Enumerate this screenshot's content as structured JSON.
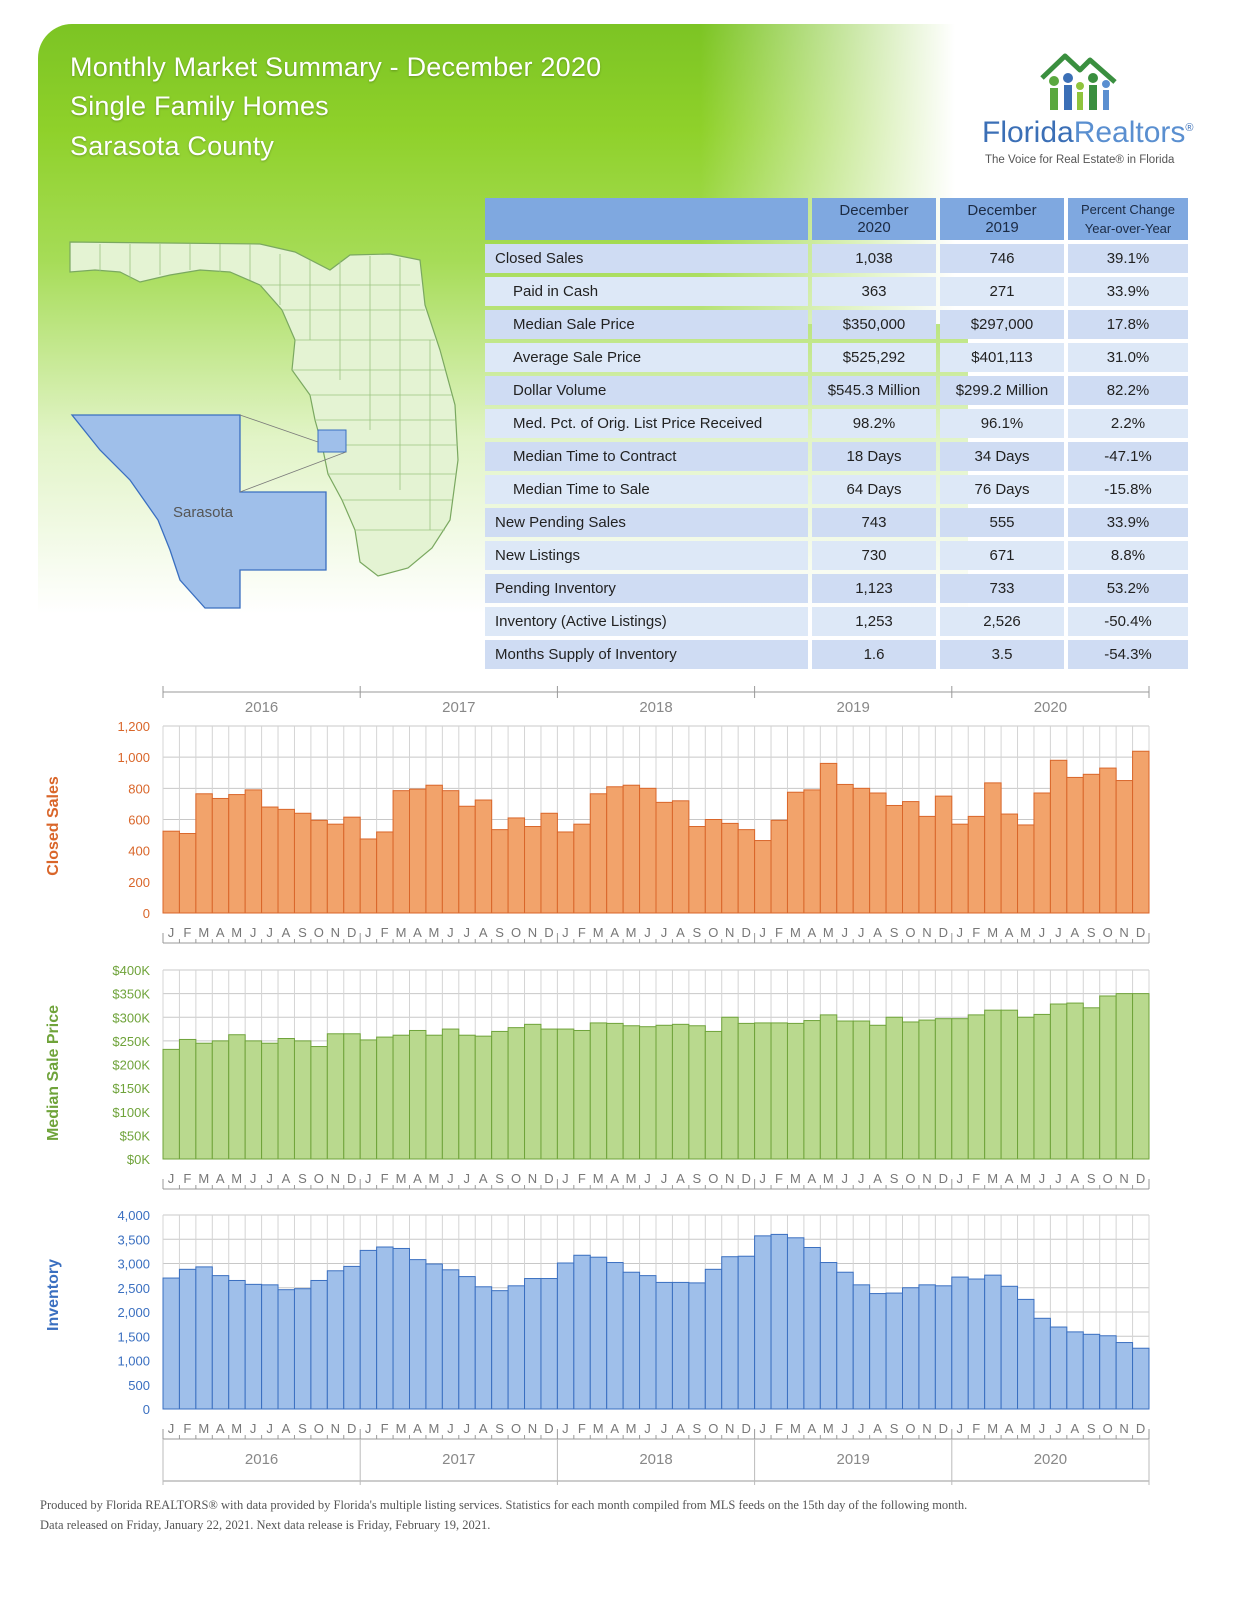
{
  "header": {
    "line1": "Monthly Market Summary - December 2020",
    "line2": "Single Family Homes",
    "line3": "Sarasota County"
  },
  "logo": {
    "word_part1": "Florida",
    "word_part2": "Realtors",
    "reg_mark": "®",
    "tagline": "The Voice for Real Estate® in Florida"
  },
  "map": {
    "county_label": "Sarasota"
  },
  "summary_table": {
    "columns": [
      "December 2020",
      "December 2019",
      "Percent Change Year-over-Year"
    ],
    "rows": [
      {
        "label": "Closed Sales",
        "dec2020": "1,038",
        "dec2019": "746",
        "pct": "39.1%",
        "indent": false
      },
      {
        "label": "Paid in Cash",
        "dec2020": "363",
        "dec2019": "271",
        "pct": "33.9%",
        "indent": true
      },
      {
        "label": "Median Sale Price",
        "dec2020": "$350,000",
        "dec2019": "$297,000",
        "pct": "17.8%",
        "indent": true
      },
      {
        "label": "Average Sale Price",
        "dec2020": "$525,292",
        "dec2019": "$401,113",
        "pct": "31.0%",
        "indent": true
      },
      {
        "label": "Dollar Volume",
        "dec2020": "$545.3 Million",
        "dec2019": "$299.2 Million",
        "pct": "82.2%",
        "indent": true
      },
      {
        "label": "Med. Pct. of Orig. List Price Received",
        "dec2020": "98.2%",
        "dec2019": "96.1%",
        "pct": "2.2%",
        "indent": true
      },
      {
        "label": "Median Time to Contract",
        "dec2020": "18 Days",
        "dec2019": "34 Days",
        "pct": "-47.1%",
        "indent": true
      },
      {
        "label": "Median Time to Sale",
        "dec2020": "64 Days",
        "dec2019": "76 Days",
        "pct": "-15.8%",
        "indent": true
      },
      {
        "label": "New Pending Sales",
        "dec2020": "743",
        "dec2019": "555",
        "pct": "33.9%",
        "indent": false
      },
      {
        "label": "New Listings",
        "dec2020": "730",
        "dec2019": "671",
        "pct": "8.8%",
        "indent": false
      },
      {
        "label": "Pending Inventory",
        "dec2020": "1,123",
        "dec2019": "733",
        "pct": "53.2%",
        "indent": false
      },
      {
        "label": "Inventory (Active Listings)",
        "dec2020": "1,253",
        "dec2019": "2,526",
        "pct": "-50.4%",
        "indent": false
      },
      {
        "label": "Months Supply of Inventory",
        "dec2020": "1.6",
        "dec2019": "3.5",
        "pct": "-54.3%",
        "indent": false
      }
    ]
  },
  "chart_data": [
    {
      "type": "bar",
      "ylabel": "Closed Sales",
      "years": [
        "2016",
        "2017",
        "2018",
        "2019",
        "2020"
      ],
      "month_labels": [
        "J",
        "F",
        "M",
        "A",
        "M",
        "J",
        "J",
        "A",
        "S",
        "O",
        "N",
        "D"
      ],
      "ylim": [
        0,
        1200
      ],
      "yticks": [
        "0",
        "200",
        "400",
        "600",
        "800",
        "1,000",
        "1,200"
      ],
      "color": "#f2a36b",
      "edge": "#d9662a",
      "values": [
        525,
        510,
        765,
        735,
        760,
        790,
        680,
        665,
        640,
        595,
        570,
        615,
        475,
        520,
        785,
        795,
        820,
        785,
        685,
        725,
        535,
        610,
        555,
        640,
        520,
        570,
        765,
        810,
        820,
        800,
        710,
        720,
        555,
        600,
        575,
        535,
        465,
        595,
        775,
        790,
        960,
        825,
        800,
        770,
        690,
        715,
        620,
        750,
        570,
        620,
        835,
        635,
        565,
        770,
        980,
        870,
        890,
        930,
        850,
        1038
      ]
    },
    {
      "type": "bar",
      "ylabel": "Median Sale Price",
      "years": [
        "2016",
        "2017",
        "2018",
        "2019",
        "2020"
      ],
      "month_labels": [
        "J",
        "F",
        "M",
        "A",
        "M",
        "J",
        "J",
        "A",
        "S",
        "O",
        "N",
        "D"
      ],
      "ylim": [
        0,
        400000
      ],
      "yticks": [
        "$0K",
        "$50K",
        "$100K",
        "$150K",
        "$200K",
        "$250K",
        "$300K",
        "$350K",
        "$400K"
      ],
      "color": "#b9d98e",
      "edge": "#6fa33a",
      "values": [
        232000,
        253000,
        245000,
        250000,
        263000,
        250000,
        245000,
        255000,
        250000,
        238000,
        265000,
        265000,
        252000,
        258000,
        262000,
        272000,
        262000,
        275000,
        262000,
        260000,
        270000,
        278000,
        285000,
        275000,
        275000,
        272000,
        288000,
        287000,
        282000,
        280000,
        283000,
        285000,
        282000,
        270000,
        300000,
        287000,
        288000,
        288000,
        287000,
        293000,
        305000,
        292000,
        292000,
        283000,
        300000,
        290000,
        294000,
        297000,
        297000,
        305000,
        315000,
        315000,
        300000,
        306000,
        328000,
        330000,
        320000,
        345000,
        350000,
        350000
      ]
    },
    {
      "type": "bar",
      "ylabel": "Inventory",
      "years": [
        "2016",
        "2017",
        "2018",
        "2019",
        "2020"
      ],
      "month_labels": [
        "J",
        "F",
        "M",
        "A",
        "M",
        "J",
        "J",
        "A",
        "S",
        "O",
        "N",
        "D"
      ],
      "ylim": [
        0,
        4000
      ],
      "yticks": [
        "0",
        "500",
        "1,000",
        "1,500",
        "2,000",
        "2,500",
        "3,000",
        "3,500",
        "4,000"
      ],
      "color": "#9fbfea",
      "edge": "#3a6fc0",
      "values": [
        2700,
        2880,
        2930,
        2750,
        2650,
        2570,
        2560,
        2460,
        2480,
        2650,
        2850,
        2940,
        3270,
        3340,
        3310,
        3080,
        2990,
        2870,
        2730,
        2520,
        2440,
        2540,
        2690,
        2690,
        3010,
        3170,
        3130,
        3020,
        2820,
        2750,
        2610,
        2610,
        2600,
        2880,
        3140,
        3150,
        3570,
        3600,
        3530,
        3330,
        3020,
        2820,
        2560,
        2380,
        2390,
        2500,
        2560,
        2540,
        2720,
        2680,
        2760,
        2530,
        2260,
        1870,
        1690,
        1590,
        1540,
        1510,
        1370,
        1253
      ]
    }
  ],
  "footer": {
    "line1": "Produced by Florida REALTORS® with data provided by Florida's multiple listing services. Statistics for each month compiled from MLS feeds on the 15th day of the following month.",
    "line2": "Data released on Friday, January 22, 2021. Next data release is Friday, February 19, 2021."
  }
}
